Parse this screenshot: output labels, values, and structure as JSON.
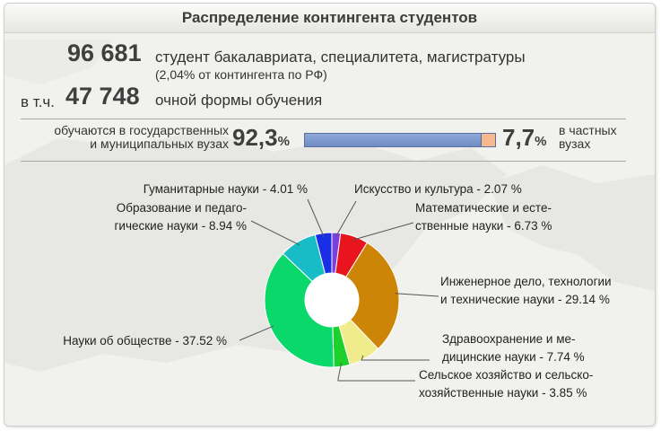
{
  "title": "Распределение контингента студентов",
  "total": {
    "value": "96 681",
    "text": "студент бакалавриата, специалитета, магистратуры",
    "share": "(2,04% от контингента по РФ)"
  },
  "fulltime": {
    "prefix": "в т.ч.",
    "value": "47 748",
    "text": "очной формы обучения"
  },
  "ownership": {
    "public_label_1": "обучаются в государственных",
    "public_label_2": "и муниципальных вузах",
    "public_value": "92,3",
    "public_unit": "%",
    "private_value": "7,7",
    "private_unit": "%",
    "private_label_1": "в частных",
    "private_label_2": "вузах",
    "public_share": 92.3,
    "private_share": 7.7,
    "public_color": "#8ea8d6",
    "private_color": "#f5b88f"
  },
  "chart_data": {
    "type": "pie",
    "donut": true,
    "categories": [
      "Искусство и культура - 2.07 %",
      "Математические и есте-ственные науки - 6.73 %",
      "Инженерное дело, технологии и технические науки - 29.14 %",
      "Здравоохранение и ме-дицинские науки - 7.74 %",
      "Сельское хозяйство и сельско-хозяйственные науки - 3.85 %",
      "Науки об обществе - 37.52 %",
      "Образование и педаго-гические науки - 8.94 %",
      "Гуманитарные науки - 4.01 %"
    ],
    "values": [
      2.07,
      6.73,
      29.14,
      7.74,
      3.85,
      37.52,
      8.94,
      4.01
    ],
    "colors": [
      "#7b3fe0",
      "#e8141e",
      "#cc8506",
      "#f0ec8c",
      "#1ed02a",
      "#0bd86a",
      "#17bcc6",
      "#1a2ee6"
    ],
    "labels": [
      [
        "Искусство и культура - 2.07 %"
      ],
      [
        "Математические и есте-",
        "ственные науки - 6.73 %"
      ],
      [
        "Инженерное дело, технологии",
        "и технические науки - 29.14 %"
      ],
      [
        "Здравоохранение и ме-",
        "дицинские науки - 7.74 %"
      ],
      [
        "Сельское хозяйство и сельско-",
        "хозяйственные науки - 3.85 %"
      ],
      [
        "Науки об обществе - 37.52 %"
      ],
      [
        "Образование и педаго-",
        "гические науки - 8.94 %"
      ],
      [
        "Гуманитарные науки - 4.01 %"
      ]
    ]
  }
}
